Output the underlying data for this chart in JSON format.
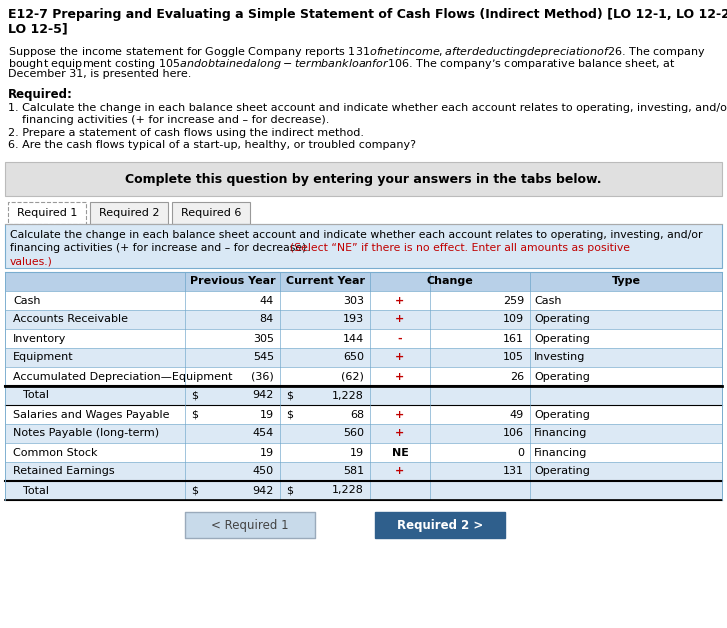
{
  "title_line1": "E12-7 Preparing and Evaluating a Simple Statement of Cash Flows (Indirect Method) [LO 12-1, LO 12-2,",
  "title_line2": "LO 12-5]",
  "para_line1": "Suppose the income statement for Goggle Company reports $131 of net income, after deducting depreciation of $26. The company",
  "para_line2": "bought equipment costing $105 and obtained a long-term bank loan for $106. The company’s comparative balance sheet, at",
  "para_line3": "December 31, is presented here.",
  "required_header": "Required:",
  "req1_line1": "1. Calculate the change in each balance sheet account and indicate whether each account relates to operating, investing, and/or",
  "req1_line2": "    financing activities (+ for increase and – for decrease).",
  "req2": "2. Prepare a statement of cash flows using the indirect method.",
  "req6": "6. Are the cash flows typical of a start-up, healthy, or troubled company?",
  "complete_box_text": "Complete this question by entering your answers in the tabs below.",
  "tabs": [
    "Required 1",
    "Required 2",
    "Required 6"
  ],
  "inst_line1": "Calculate the change in each balance sheet account and indicate whether each account relates to operating, investing, and/or",
  "inst_line2_black": "financing activities (+ for increase and – for decrease). ",
  "inst_line2_red": "(Select “NE” if there is no effect. Enter all amounts as positive",
  "inst_line3_red": "values.)",
  "col_headers": [
    "Previous Year",
    "Current Year",
    "Change",
    "Type"
  ],
  "rows": [
    {
      "label": "Cash",
      "prev": "44",
      "curr": "303",
      "sign": "+",
      "change": "259",
      "type": "Cash",
      "is_total": false,
      "dollar_prev": false,
      "dollar_curr": false
    },
    {
      "label": "Accounts Receivable",
      "prev": "84",
      "curr": "193",
      "sign": "+",
      "change": "109",
      "type": "Operating",
      "is_total": false,
      "dollar_prev": false,
      "dollar_curr": false
    },
    {
      "label": "Inventory",
      "prev": "305",
      "curr": "144",
      "sign": "-",
      "change": "161",
      "type": "Operating",
      "is_total": false,
      "dollar_prev": false,
      "dollar_curr": false
    },
    {
      "label": "Equipment",
      "prev": "545",
      "curr": "650",
      "sign": "+",
      "change": "105",
      "type": "Investing",
      "is_total": false,
      "dollar_prev": false,
      "dollar_curr": false
    },
    {
      "label": "Accumulated Depreciation—Equipment",
      "prev": "(36)",
      "curr": "(62)",
      "sign": "+",
      "change": "26",
      "type": "Operating",
      "is_total": false,
      "dollar_prev": false,
      "dollar_curr": false
    },
    {
      "label": "  Total",
      "prev": "942",
      "curr": "1,228",
      "sign": "",
      "change": "",
      "type": "",
      "is_total": true,
      "dollar_prev": true,
      "dollar_curr": true
    },
    {
      "label": "Salaries and Wages Payable",
      "prev": "19",
      "curr": "68",
      "sign": "+",
      "change": "49",
      "type": "Operating",
      "is_total": false,
      "dollar_prev": true,
      "dollar_curr": true
    },
    {
      "label": "Notes Payable (long-term)",
      "prev": "454",
      "curr": "560",
      "sign": "+",
      "change": "106",
      "type": "Financing",
      "is_total": false,
      "dollar_prev": false,
      "dollar_curr": false
    },
    {
      "label": "Common Stock",
      "prev": "19",
      "curr": "19",
      "sign": "NE",
      "change": "0",
      "type": "Financing",
      "is_total": false,
      "dollar_prev": false,
      "dollar_curr": false
    },
    {
      "label": "Retained Earnings",
      "prev": "450",
      "curr": "581",
      "sign": "+",
      "change": "131",
      "type": "Operating",
      "is_total": false,
      "dollar_prev": false,
      "dollar_curr": false
    },
    {
      "label": "  Total",
      "prev": "942",
      "curr": "1,228",
      "sign": "",
      "change": "",
      "type": "",
      "is_total": true,
      "dollar_prev": true,
      "dollar_curr": true
    }
  ],
  "btn1_text": "< Required 1",
  "btn2_text": "Required 2 >",
  "colors": {
    "title_color": "#000000",
    "body_text": "#000000",
    "complete_box_bg": "#e0e0e0",
    "tab_active_bg": "#ffffff",
    "tab_inactive_bg": "#f5f5f5",
    "instruction_bg": "#d9e8f5",
    "table_header_bg": "#b8d0e8",
    "table_row_white": "#ffffff",
    "table_row_blue": "#dce9f5",
    "table_border": "#7aadcf",
    "table_dark_border": "#000000",
    "sign_red": "#c00000",
    "btn1_bg": "#c8daea",
    "btn2_bg": "#2f5f8c",
    "btn2_text": "#ffffff",
    "btn1_text": "#444444"
  }
}
